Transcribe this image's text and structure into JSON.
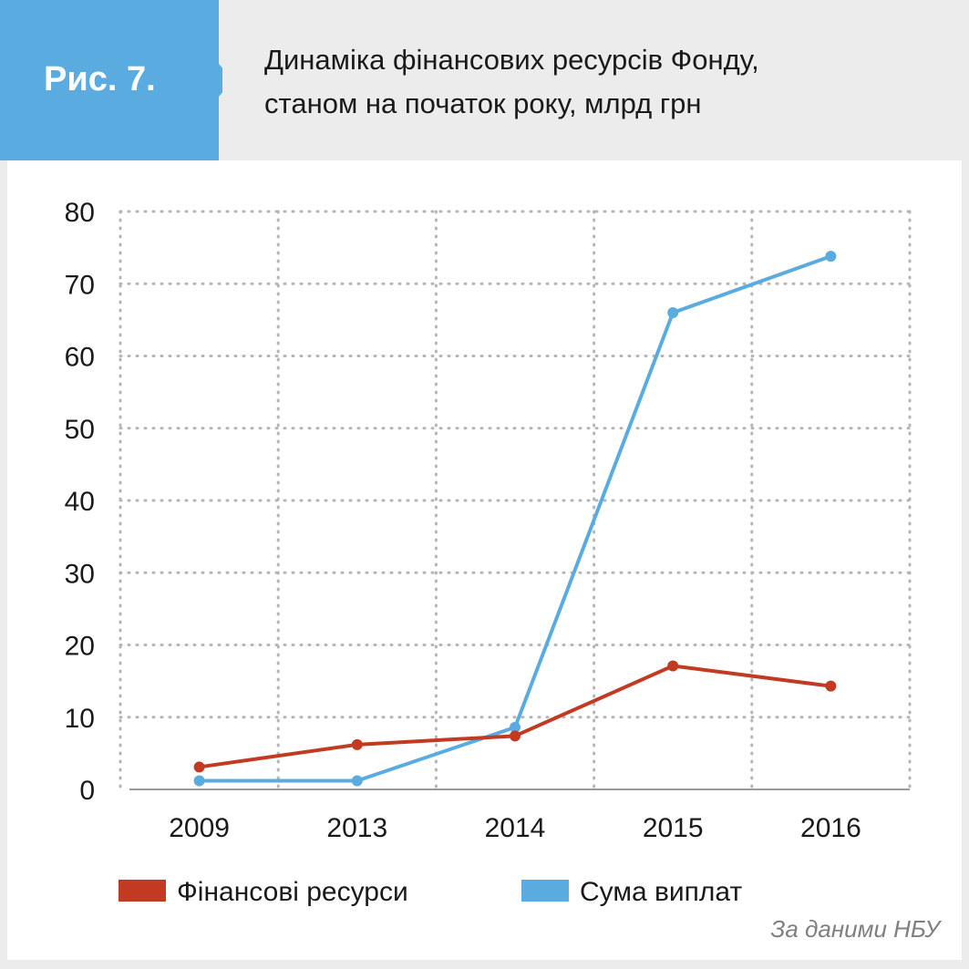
{
  "header": {
    "badge": "Рис. 7.",
    "title_line1": "Динаміка фінансових ресурсів Фонду,",
    "title_line2": "станом на початок року, млрд грн"
  },
  "source": "За даними НБУ",
  "colors": {
    "badge": "#5aace0",
    "series_financial": "#c23a22",
    "series_payments": "#5aace0",
    "grid": "#b5b5b5"
  },
  "chart_data": {
    "type": "line",
    "categories": [
      "2009",
      "2013",
      "2014",
      "2015",
      "2016"
    ],
    "y_ticks": [
      "0",
      "10",
      "20",
      "30",
      "40",
      "50",
      "60",
      "70",
      "80"
    ],
    "ylim": [
      0,
      80
    ],
    "grid": true,
    "legend_position": "bottom",
    "series": [
      {
        "name": "Фінансові ресурси",
        "color": "#c23a22",
        "values": [
          3.1,
          6.2,
          7.4,
          17.1,
          14.3
        ]
      },
      {
        "name": "Сума виплат",
        "color": "#5aace0",
        "values": [
          1.2,
          1.2,
          8.6,
          66.0,
          73.8
        ]
      }
    ]
  }
}
